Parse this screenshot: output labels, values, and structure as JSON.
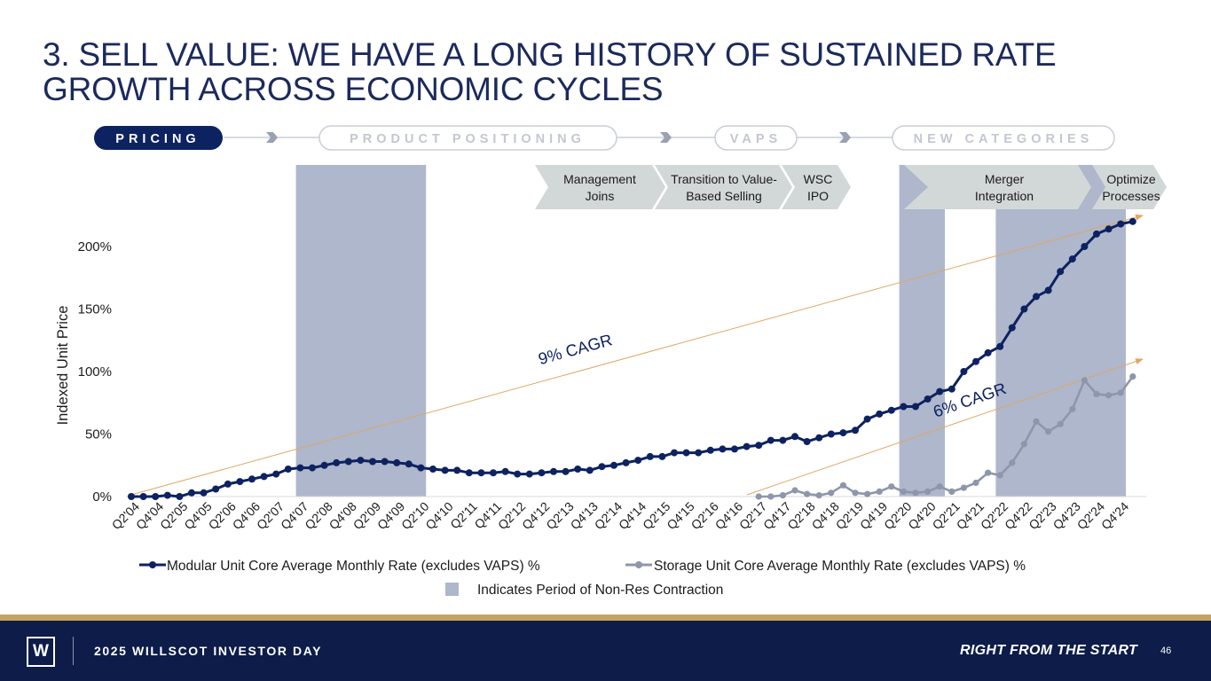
{
  "slide": {
    "title_line1": "3. SELL VALUE: WE HAVE A LONG HISTORY OF SUSTAINED RATE",
    "title_line2": "GROWTH ACROSS ECONOMIC CYCLES",
    "page_number": "46"
  },
  "nav": {
    "pricing": "PRICING",
    "product_positioning": "PRODUCT POSITIONING",
    "vaps": "VAPS",
    "new_categories": "NEW CATEGORIES"
  },
  "milestones": {
    "management_joins": [
      "Management",
      "Joins"
    ],
    "transition": [
      "Transition to Value-",
      "Based Selling"
    ],
    "wsc_ipo": [
      "WSC",
      "IPO"
    ],
    "merger": [
      "Merger",
      "Integration"
    ],
    "optimize": [
      "Optimize",
      "Processes"
    ]
  },
  "footer": {
    "logo_letter": "W",
    "event": "2025 WILLSCOT INVESTOR DAY",
    "tagline": "RIGHT FROM THE START"
  },
  "colors": {
    "navy": "#0d2260",
    "modular_series": "#0d2260",
    "storage_series": "#8d96ab",
    "contraction_shading": "#aeb7cb",
    "cagr_arrow": "#e0a766",
    "nav_active": "#0d2260",
    "milestone_fill": "#d2d7d8",
    "gold_rule": "#c7a362"
  },
  "chart_data": {
    "type": "line",
    "ylabel": "Indexed Unit Price",
    "xlabel": "",
    "ylim": [
      0,
      220
    ],
    "yticks": [
      0,
      50,
      100,
      150,
      200
    ],
    "ytick_labels": [
      "0%",
      "50%",
      "100%",
      "150%",
      "200%"
    ],
    "x_tick_labels": [
      "Q2'04",
      "Q4'04",
      "Q2'05",
      "Q4'05",
      "Q2'06",
      "Q4'06",
      "Q2'07",
      "Q4'07",
      "Q2'08",
      "Q4'08",
      "Q2'09",
      "Q4'09",
      "Q2'10",
      "Q4'10",
      "Q2'11",
      "Q4'11",
      "Q2'12",
      "Q4'12",
      "Q2'13",
      "Q4'13",
      "Q2'14",
      "Q4'14",
      "Q2'15",
      "Q4'15",
      "Q2'16",
      "Q4'16",
      "Q2'17",
      "Q4'17",
      "Q2'18",
      "Q4'18",
      "Q2'19",
      "Q4'19",
      "Q2'20",
      "Q4'20",
      "Q2'21",
      "Q4'21",
      "Q2'22",
      "Q4'22",
      "Q2'23",
      "Q4'23",
      "Q2'24",
      "Q4'24"
    ],
    "series": [
      {
        "name": "Modular Unit Core Average Monthly Rate (excludes VAPS) %",
        "start_quarter": "Q2'04",
        "values": [
          0,
          0,
          0,
          1,
          0,
          3,
          3,
          6,
          10,
          12,
          14,
          16,
          18,
          22,
          23,
          23,
          25,
          27,
          28,
          29,
          28,
          28,
          27,
          26,
          23,
          22,
          21,
          21,
          19,
          19,
          19,
          20,
          18,
          18,
          19,
          20,
          20,
          22,
          21,
          24,
          25,
          27,
          29,
          32,
          32,
          35,
          35,
          35,
          37,
          38,
          38,
          40,
          41,
          45,
          45,
          48,
          44,
          47,
          50,
          51,
          53,
          62,
          66,
          69,
          72,
          72,
          78,
          84,
          86,
          100,
          108,
          115,
          120,
          135,
          150,
          160,
          165,
          180,
          190,
          200,
          210,
          214,
          218,
          220
        ]
      },
      {
        "name": "Storage Unit Core Average Monthly Rate (excludes VAPS) %",
        "start_quarter": "Q2'17",
        "values": [
          0,
          0,
          1,
          5,
          2,
          1,
          3,
          9,
          3,
          2,
          4,
          8,
          4,
          3,
          4,
          8,
          4,
          7,
          11,
          19,
          17,
          27,
          42,
          60,
          52,
          58,
          70,
          93,
          82,
          81,
          83,
          96
        ]
      }
    ],
    "annotations": [
      "9% CAGR",
      "6% CAGR"
    ],
    "shaded_periods_note": "Indicates Period of Non-Res Contraction",
    "shaded_periods": [
      [
        "Q4'07",
        "Q2'10"
      ],
      [
        "Q2'20",
        "Q1'21"
      ],
      [
        "Q2'22",
        "Q4'24"
      ]
    ],
    "legend_position": "bottom",
    "grid": false
  }
}
